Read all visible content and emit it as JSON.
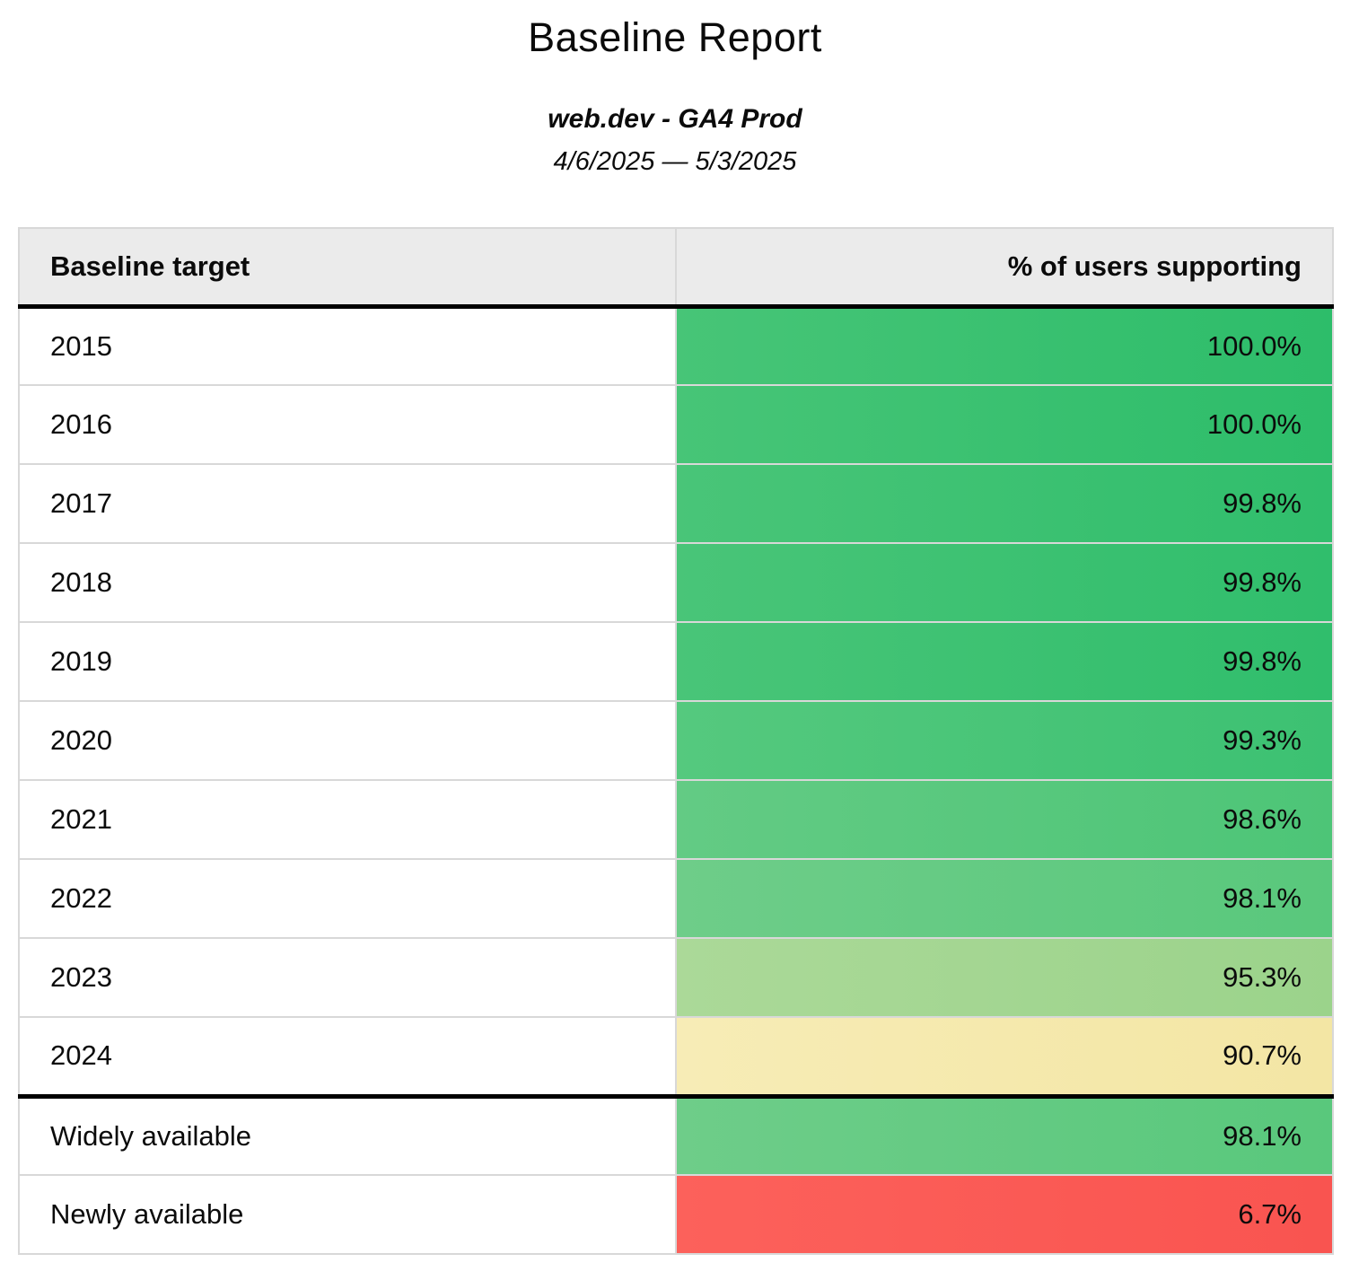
{
  "page": {
    "title": "Baseline Report",
    "subtitle": "web.dev - GA4 Prod",
    "date_range": "4/6/2025 — 5/3/2025"
  },
  "table": {
    "headers": {
      "target": "Baseline target",
      "supporting": "% of users supporting"
    },
    "rows": [
      {
        "label": "2015",
        "value": "100.0%",
        "bg_from": "#47c577",
        "bg_to": "#2dbd6a",
        "divider_before": false
      },
      {
        "label": "2016",
        "value": "100.0%",
        "bg_from": "#47c577",
        "bg_to": "#2dbd6a",
        "divider_before": false
      },
      {
        "label": "2017",
        "value": "99.8%",
        "bg_from": "#49c578",
        "bg_to": "#30be6c",
        "divider_before": false
      },
      {
        "label": "2018",
        "value": "99.8%",
        "bg_from": "#49c578",
        "bg_to": "#30be6c",
        "divider_before": false
      },
      {
        "label": "2019",
        "value": "99.8%",
        "bg_from": "#49c578",
        "bg_to": "#30be6c",
        "divider_before": false
      },
      {
        "label": "2020",
        "value": "99.3%",
        "bg_from": "#55c97e",
        "bg_to": "#3cc172",
        "divider_before": false
      },
      {
        "label": "2021",
        "value": "98.6%",
        "bg_from": "#63cb84",
        "bg_to": "#4dc577",
        "divider_before": false
      },
      {
        "label": "2022",
        "value": "98.1%",
        "bg_from": "#6ecd89",
        "bg_to": "#59c87c",
        "divider_before": false
      },
      {
        "label": "2023",
        "value": "95.3%",
        "bg_from": "#abd998",
        "bg_to": "#9bd38b",
        "divider_before": false
      },
      {
        "label": "2024",
        "value": "90.7%",
        "bg_from": "#f7ecb6",
        "bg_to": "#f3e6a4",
        "divider_before": false
      },
      {
        "label": "Widely available",
        "value": "98.1%",
        "bg_from": "#6ecd89",
        "bg_to": "#59c87c",
        "divider_before": true
      },
      {
        "label": "Newly available",
        "value": "6.7%",
        "bg_from": "#fc615b",
        "bg_to": "#f95450",
        "divider_before": false
      }
    ]
  },
  "colors": {
    "header_bg": "#ebebeb",
    "grid_border": "#d8d8d8",
    "strong_border": "#000000",
    "green_high": "#2dbd6a",
    "green_mid": "#59c87c",
    "green_low": "#9bd38b",
    "yellow": "#f3e6a4",
    "red": "#f95450"
  },
  "chart_data": {
    "type": "table",
    "title": "Baseline Report",
    "subtitle": "web.dev - GA4 Prod",
    "date_range": "4/6/2025 — 5/3/2025",
    "columns": [
      "Baseline target",
      "% of users supporting"
    ],
    "categories": [
      "2015",
      "2016",
      "2017",
      "2018",
      "2019",
      "2020",
      "2021",
      "2022",
      "2023",
      "2024",
      "Widely available",
      "Newly available"
    ],
    "values": [
      100.0,
      100.0,
      99.8,
      99.8,
      99.8,
      99.3,
      98.6,
      98.1,
      95.3,
      90.7,
      98.1,
      6.7
    ],
    "value_unit": "%",
    "layout": "heatmap-colored value column, green=high, yellow=mid, red=low; thick rule separates year targets from availability rows"
  }
}
